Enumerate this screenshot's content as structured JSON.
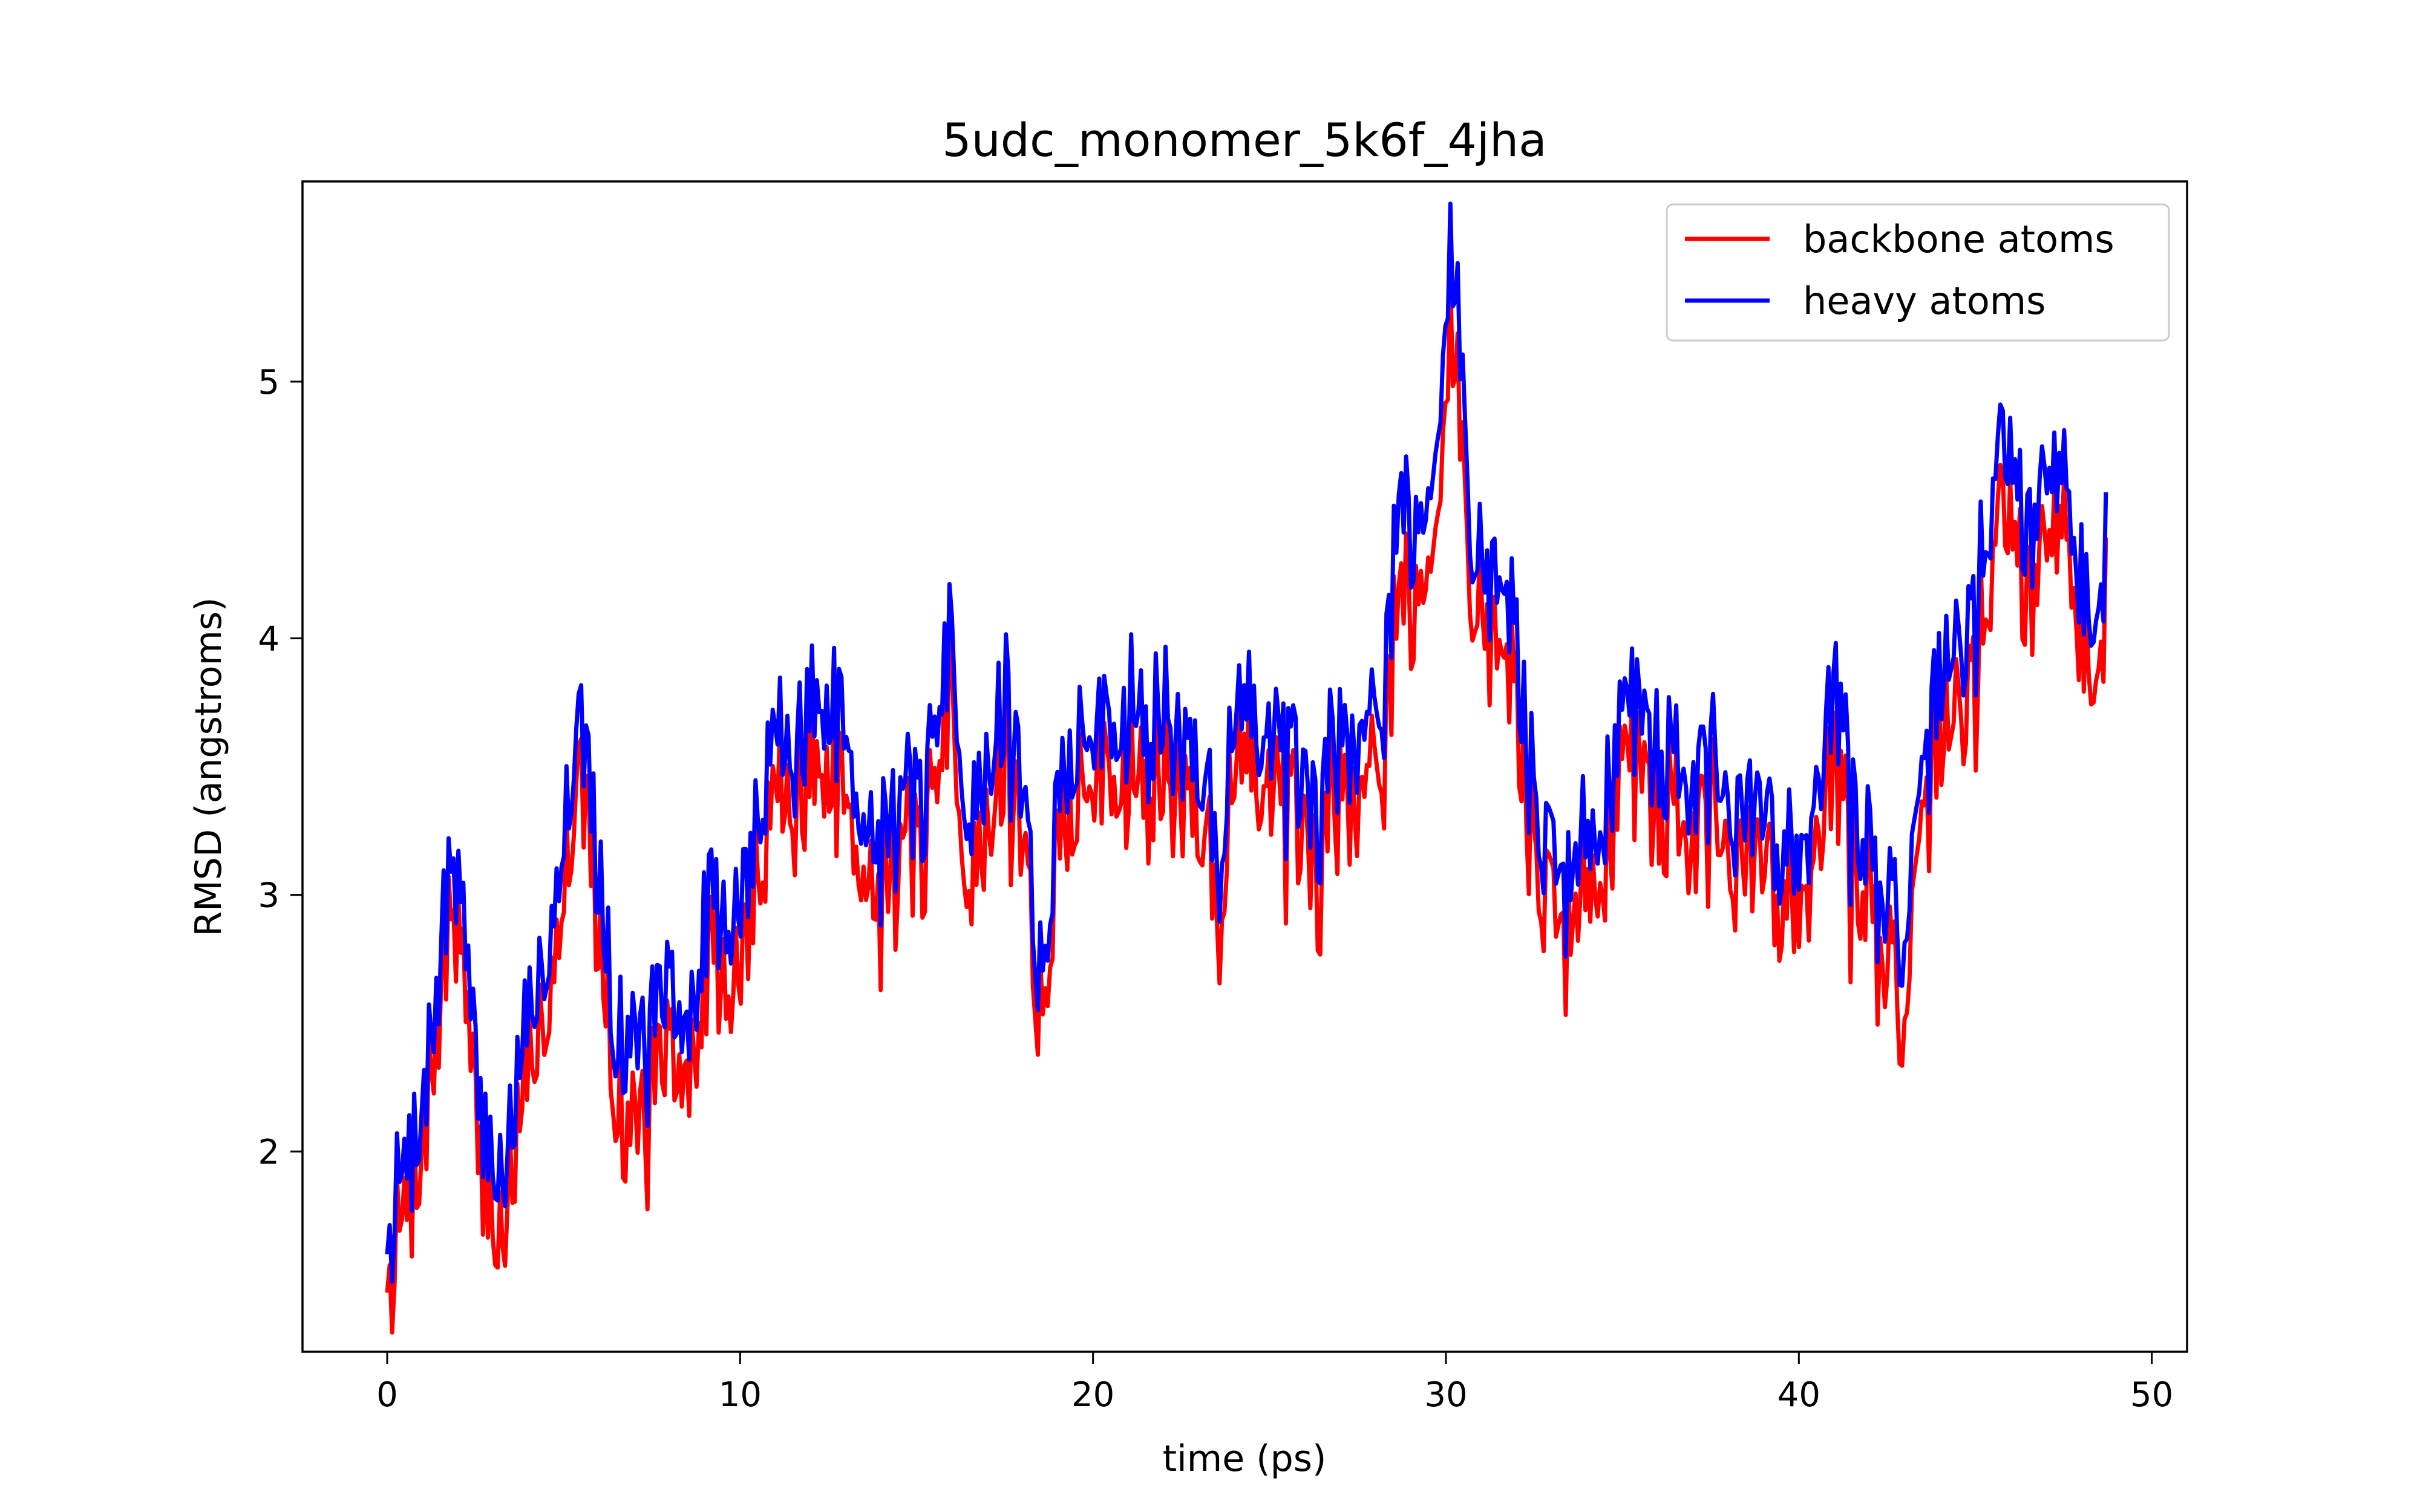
{
  "chart_data": {
    "type": "line",
    "title": "5udc_monomer_5k6f_4jha",
    "xlabel": "time (ps)",
    "ylabel": "RMSD (angstroms)",
    "xlim": [
      -2.4,
      51.0
    ],
    "ylim": [
      1.22,
      5.78
    ],
    "xticks": [
      0,
      10,
      20,
      30,
      40,
      50
    ],
    "yticks": [
      2,
      3,
      4,
      5
    ],
    "grid": false,
    "legend_position": "top-right",
    "series": [
      {
        "name": "backbone atoms",
        "color": "#ff0000",
        "anchors": [
          [
            0,
            1.45
          ],
          [
            0.3,
            1.65
          ],
          [
            0.6,
            1.8
          ],
          [
            0.9,
            2.0
          ],
          [
            1.3,
            2.3
          ],
          [
            1.6,
            2.7
          ],
          [
            1.9,
            3.0
          ],
          [
            2.2,
            2.6
          ],
          [
            2.5,
            2.1
          ],
          [
            2.8,
            1.85
          ],
          [
            3.1,
            1.7
          ],
          [
            3.4,
            1.8
          ],
          [
            3.7,
            2.1
          ],
          [
            4.0,
            2.35
          ],
          [
            4.4,
            2.5
          ],
          [
            4.8,
            2.9
          ],
          [
            5.2,
            3.3
          ],
          [
            5.5,
            3.7
          ],
          [
            5.8,
            3.1
          ],
          [
            6.1,
            2.75
          ],
          [
            6.4,
            2.35
          ],
          [
            6.8,
            2.05
          ],
          [
            7.2,
            2.2
          ],
          [
            7.6,
            2.3
          ],
          [
            8.0,
            2.4
          ],
          [
            8.4,
            2.2
          ],
          [
            8.8,
            2.5
          ],
          [
            9.2,
            2.85
          ],
          [
            9.6,
            2.6
          ],
          [
            10.0,
            2.7
          ],
          [
            10.4,
            3.0
          ],
          [
            10.8,
            3.3
          ],
          [
            11.2,
            3.45
          ],
          [
            11.6,
            3.35
          ],
          [
            12.0,
            3.5
          ],
          [
            12.4,
            3.45
          ],
          [
            12.8,
            3.6
          ],
          [
            13.2,
            3.3
          ],
          [
            13.6,
            3.1
          ],
          [
            14.0,
            3.15
          ],
          [
            14.4,
            3.05
          ],
          [
            14.8,
            3.2
          ],
          [
            15.2,
            3.1
          ],
          [
            15.6,
            3.6
          ],
          [
            16.0,
            3.8
          ],
          [
            16.4,
            3.1
          ],
          [
            16.8,
            3.15
          ],
          [
            17.2,
            3.5
          ],
          [
            17.6,
            3.6
          ],
          [
            18.0,
            3.3
          ],
          [
            18.4,
            2.6
          ],
          [
            18.8,
            2.9
          ],
          [
            19.2,
            3.3
          ],
          [
            19.6,
            3.45
          ],
          [
            20.0,
            3.3
          ],
          [
            20.4,
            3.55
          ],
          [
            20.8,
            3.5
          ],
          [
            21.2,
            3.65
          ],
          [
            21.6,
            3.45
          ],
          [
            22.0,
            3.5
          ],
          [
            22.4,
            3.35
          ],
          [
            22.8,
            3.4
          ],
          [
            23.2,
            3.25
          ],
          [
            23.6,
            3.05
          ],
          [
            24.0,
            3.45
          ],
          [
            24.4,
            3.55
          ],
          [
            24.8,
            3.3
          ],
          [
            25.2,
            3.5
          ],
          [
            25.6,
            3.35
          ],
          [
            26.0,
            3.15
          ],
          [
            26.4,
            3.05
          ],
          [
            26.8,
            3.45
          ],
          [
            27.2,
            3.5
          ],
          [
            27.6,
            3.65
          ],
          [
            28.0,
            3.45
          ],
          [
            28.4,
            3.85
          ],
          [
            28.7,
            4.4
          ],
          [
            29.0,
            4.05
          ],
          [
            29.4,
            4.35
          ],
          [
            29.8,
            4.5
          ],
          [
            30.1,
            5.2
          ],
          [
            30.4,
            4.85
          ],
          [
            30.7,
            4.3
          ],
          [
            31.0,
            4.05
          ],
          [
            31.4,
            3.95
          ],
          [
            31.8,
            3.9
          ],
          [
            32.2,
            3.55
          ],
          [
            32.6,
            3.1
          ],
          [
            33.0,
            2.95
          ],
          [
            33.4,
            2.8
          ],
          [
            33.8,
            3.05
          ],
          [
            34.2,
            2.9
          ],
          [
            34.6,
            3.2
          ],
          [
            35.0,
            3.45
          ],
          [
            35.4,
            3.8
          ],
          [
            35.8,
            3.45
          ],
          [
            36.2,
            3.3
          ],
          [
            36.6,
            3.4
          ],
          [
            37.0,
            3.3
          ],
          [
            37.4,
            3.45
          ],
          [
            37.8,
            3.25
          ],
          [
            38.2,
            3.0
          ],
          [
            38.6,
            3.15
          ],
          [
            39.0,
            3.1
          ],
          [
            39.4,
            2.95
          ],
          [
            39.8,
            3.05
          ],
          [
            40.2,
            3.0
          ],
          [
            40.6,
            3.35
          ],
          [
            41.0,
            3.5
          ],
          [
            41.4,
            3.3
          ],
          [
            41.8,
            3.05
          ],
          [
            42.2,
            2.9
          ],
          [
            42.6,
            2.75
          ],
          [
            43.0,
            2.5
          ],
          [
            43.4,
            3.0
          ],
          [
            43.8,
            3.5
          ],
          [
            44.2,
            3.8
          ],
          [
            44.6,
            3.65
          ],
          [
            45.0,
            3.9
          ],
          [
            45.4,
            4.3
          ],
          [
            45.8,
            4.6
          ],
          [
            46.2,
            4.35
          ],
          [
            46.6,
            4.05
          ],
          [
            47.0,
            4.45
          ],
          [
            47.4,
            4.55
          ],
          [
            47.8,
            4.15
          ],
          [
            48.2,
            3.95
          ],
          [
            48.5,
            3.75
          ],
          [
            48.7,
            4.15
          ]
        ]
      },
      {
        "name": "heavy atoms",
        "color": "#0000ff",
        "anchors": [
          [
            0,
            1.6
          ],
          [
            0.3,
            1.85
          ],
          [
            0.6,
            1.95
          ],
          [
            0.9,
            2.15
          ],
          [
            1.3,
            2.45
          ],
          [
            1.6,
            2.85
          ],
          [
            1.9,
            3.2
          ],
          [
            2.2,
            2.8
          ],
          [
            2.5,
            2.3
          ],
          [
            2.8,
            2.05
          ],
          [
            3.1,
            1.95
          ],
          [
            3.4,
            2.0
          ],
          [
            3.7,
            2.3
          ],
          [
            4.0,
            2.55
          ],
          [
            4.4,
            2.7
          ],
          [
            4.8,
            3.1
          ],
          [
            5.2,
            3.5
          ],
          [
            5.5,
            3.9
          ],
          [
            5.8,
            3.3
          ],
          [
            6.1,
            2.95
          ],
          [
            6.4,
            2.55
          ],
          [
            6.8,
            2.4
          ],
          [
            7.2,
            2.5
          ],
          [
            7.6,
            2.55
          ],
          [
            8.0,
            2.65
          ],
          [
            8.4,
            2.4
          ],
          [
            8.8,
            2.7
          ],
          [
            9.2,
            3.05
          ],
          [
            9.6,
            2.85
          ],
          [
            10.0,
            2.95
          ],
          [
            10.4,
            3.2
          ],
          [
            10.8,
            3.55
          ],
          [
            11.2,
            3.65
          ],
          [
            11.6,
            3.55
          ],
          [
            12.0,
            3.75
          ],
          [
            12.4,
            3.7
          ],
          [
            12.8,
            3.85
          ],
          [
            13.2,
            3.5
          ],
          [
            13.6,
            3.3
          ],
          [
            14.0,
            3.35
          ],
          [
            14.4,
            3.25
          ],
          [
            14.8,
            3.4
          ],
          [
            15.2,
            3.3
          ],
          [
            15.6,
            3.8
          ],
          [
            16.0,
            4.0
          ],
          [
            16.4,
            3.35
          ],
          [
            16.8,
            3.4
          ],
          [
            17.2,
            3.7
          ],
          [
            17.6,
            3.8
          ],
          [
            18.0,
            3.5
          ],
          [
            18.4,
            2.75
          ],
          [
            18.8,
            3.05
          ],
          [
            19.2,
            3.5
          ],
          [
            19.6,
            3.65
          ],
          [
            20.0,
            3.5
          ],
          [
            20.4,
            3.75
          ],
          [
            20.8,
            3.7
          ],
          [
            21.2,
            3.9
          ],
          [
            21.6,
            3.65
          ],
          [
            22.0,
            3.75
          ],
          [
            22.4,
            3.55
          ],
          [
            22.8,
            3.6
          ],
          [
            23.2,
            3.45
          ],
          [
            23.6,
            3.25
          ],
          [
            24.0,
            3.65
          ],
          [
            24.4,
            3.75
          ],
          [
            24.8,
            3.5
          ],
          [
            25.2,
            3.7
          ],
          [
            25.6,
            3.55
          ],
          [
            26.0,
            3.35
          ],
          [
            26.4,
            3.3
          ],
          [
            26.8,
            3.65
          ],
          [
            27.2,
            3.7
          ],
          [
            27.6,
            3.85
          ],
          [
            28.0,
            3.65
          ],
          [
            28.4,
            4.1
          ],
          [
            28.7,
            4.75
          ],
          [
            29.0,
            4.35
          ],
          [
            29.4,
            4.6
          ],
          [
            29.8,
            4.8
          ],
          [
            30.1,
            5.5
          ],
          [
            30.4,
            5.15
          ],
          [
            30.7,
            4.5
          ],
          [
            31.0,
            4.25
          ],
          [
            31.4,
            4.2
          ],
          [
            31.8,
            4.15
          ],
          [
            32.2,
            3.75
          ],
          [
            32.6,
            3.3
          ],
          [
            33.0,
            3.15
          ],
          [
            33.4,
            3.0
          ],
          [
            33.8,
            3.25
          ],
          [
            34.2,
            3.1
          ],
          [
            34.6,
            3.4
          ],
          [
            35.0,
            3.65
          ],
          [
            35.4,
            4.0
          ],
          [
            35.8,
            3.65
          ],
          [
            36.2,
            3.5
          ],
          [
            36.6,
            3.6
          ],
          [
            37.0,
            3.5
          ],
          [
            37.4,
            3.65
          ],
          [
            37.8,
            3.45
          ],
          [
            38.2,
            3.2
          ],
          [
            38.6,
            3.35
          ],
          [
            39.0,
            3.3
          ],
          [
            39.4,
            3.15
          ],
          [
            39.8,
            3.25
          ],
          [
            40.2,
            3.2
          ],
          [
            40.6,
            3.55
          ],
          [
            41.0,
            3.8
          ],
          [
            41.4,
            3.55
          ],
          [
            41.8,
            3.25
          ],
          [
            42.2,
            3.1
          ],
          [
            42.6,
            3.0
          ],
          [
            43.0,
            2.8
          ],
          [
            43.4,
            3.2
          ],
          [
            43.8,
            3.7
          ],
          [
            44.2,
            4.05
          ],
          [
            44.6,
            3.9
          ],
          [
            45.0,
            4.15
          ],
          [
            45.4,
            4.55
          ],
          [
            45.8,
            4.85
          ],
          [
            46.2,
            4.6
          ],
          [
            46.6,
            4.3
          ],
          [
            47.0,
            4.7
          ],
          [
            47.4,
            4.75
          ],
          [
            47.8,
            4.35
          ],
          [
            48.2,
            4.15
          ],
          [
            48.5,
            4.0
          ],
          [
            48.7,
            4.35
          ]
        ]
      }
    ]
  }
}
